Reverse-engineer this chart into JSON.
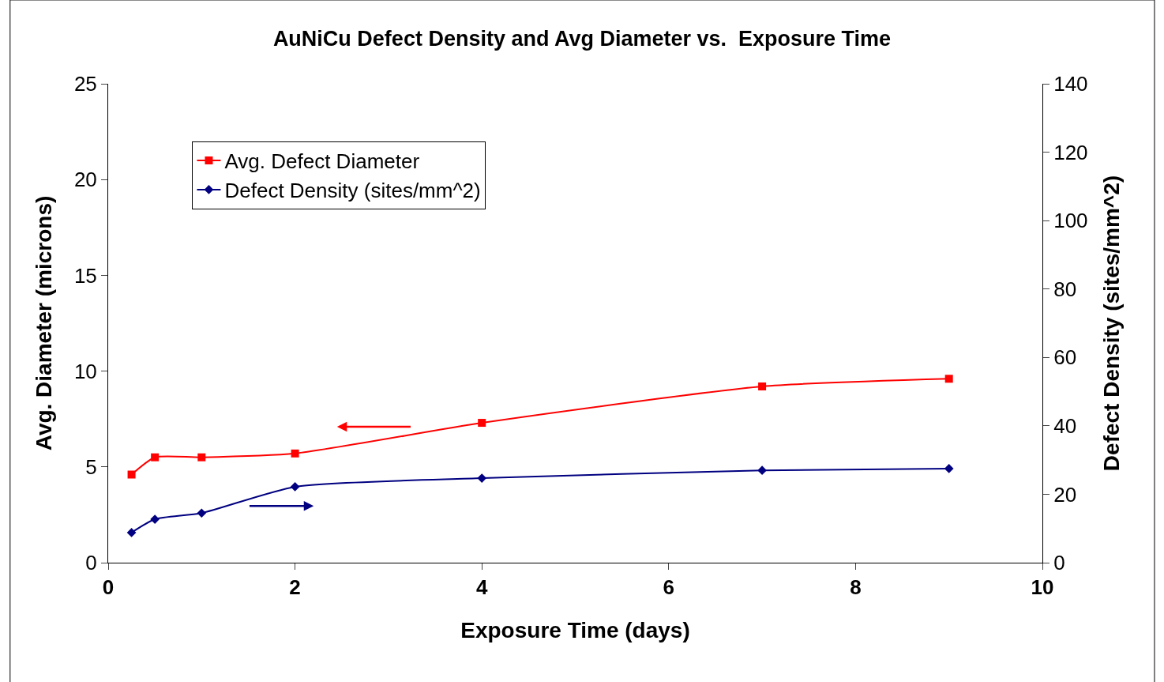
{
  "chart_data": {
    "type": "line",
    "title": "AuNiCu Defect Density and Avg Diameter vs.  Exposure Time",
    "xlabel": "Exposure Time (days)",
    "ylabel": "Avg. Diameter (microns)",
    "y2label": "Defect Density (sites/mm^2)",
    "x": [
      0.25,
      0.5,
      1,
      2,
      4,
      7,
      9
    ],
    "series": [
      {
        "name": "Avg. Defect Diameter",
        "color": "#ff0000",
        "marker": "square",
        "values": [
          4.6,
          5.5,
          5.5,
          5.7,
          7.3,
          9.2,
          9.6
        ]
      },
      {
        "name": "Defect Density (sites/mm^2)",
        "color": "#000080",
        "marker": "diamond",
        "axis": "y2",
        "values": [
          8.8,
          12.7,
          14.5,
          22.2,
          24.7,
          27.0,
          27.5
        ]
      }
    ],
    "xlim": [
      0,
      10
    ],
    "xticks": [
      0,
      2,
      4,
      6,
      8,
      10
    ],
    "ylim": [
      0,
      25
    ],
    "yticks": [
      0,
      5,
      10,
      15,
      20,
      25
    ],
    "y2lim": [
      0,
      140
    ],
    "y2ticks": [
      0,
      20,
      40,
      60,
      80,
      100,
      120,
      140
    ],
    "grid": false,
    "legend": "top left",
    "line_style": "solid"
  }
}
